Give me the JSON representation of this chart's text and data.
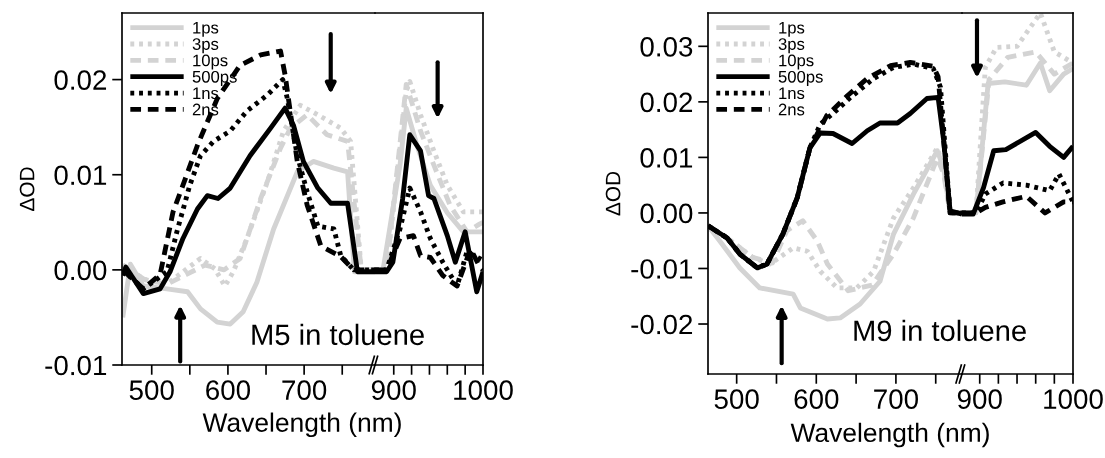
{
  "chart_data": [
    {
      "type": "line",
      "xlabel": "Wavelength (nm)",
      "ylabel": "ΔOD",
      "annotations": [
        "M5 in toluene"
      ],
      "legend": "top left",
      "xlim": [
        461,
        793
      ],
      "xticks": [
        500,
        {
          "value": 550,
          "label": null
        },
        600,
        {
          "value": 650,
          "label": null
        },
        700,
        {
          "value": 750,
          "label": null
        }
      ],
      "ylim": [
        -0.01,
        0.027
      ],
      "yticks": [
        -0.01,
        {
          "value": 0,
          "label": "0.00"
        },
        0.01,
        0.02
      ],
      "series": [
        {
          "name": "1ps",
          "color": "#d3d3d3",
          "line_style": "solid",
          "x": [
            462,
            472,
            489,
            520,
            547,
            564,
            586,
            603,
            620,
            638,
            660,
            691,
            712,
            739,
            757,
            766,
            793
          ],
          "values": [
            -0.005,
            0.0006,
            -0.0017,
            -0.002,
            -0.0023,
            -0.0041,
            -0.0055,
            -0.0057,
            -0.0044,
            -0.0013,
            0.0043,
            0.0103,
            0.0114,
            0.0107,
            0.0103,
            -0.0002,
            -0.0002
          ]
        },
        {
          "name": "3ps",
          "color": "#d3d3d3",
          "line_style": "dotted",
          "x": [
            462,
            490,
            520,
            541,
            564,
            583,
            596,
            607,
            625,
            652,
            673,
            695,
            718,
            748,
            761,
            775,
            793
          ],
          "values": [
            0.0005,
            -0.001,
            -0.0015,
            -0.0002,
            0.0012,
            0.0001,
            -0.0017,
            -0.0002,
            0.0033,
            0.0093,
            0.0146,
            0.0173,
            0.0163,
            0.0149,
            0.0135,
            0.0,
            0.0
          ]
        },
        {
          "name": "10ps",
          "color": "#d3d3d3",
          "line_style": "dashed",
          "x": [
            462,
            490,
            520,
            545,
            570,
            595,
            616,
            643,
            669,
            682,
            704,
            730,
            757,
            775,
            793
          ],
          "values": [
            0.0005,
            -0.001,
            -0.0015,
            -0.0005,
            0.0005,
            0.0,
            0.0012,
            0.0075,
            0.0128,
            0.0149,
            0.0163,
            0.0142,
            0.0135,
            0.0,
            0.0
          ]
        },
        {
          "name": "500ps",
          "color": "#000000",
          "line_style": "solid",
          "x": [
            462,
            466,
            489,
            511,
            524,
            541,
            560,
            573,
            587,
            603,
            629,
            656,
            675,
            686,
            699,
            718,
            735,
            757,
            770,
            793
          ],
          "values": [
            -0.0006,
            0.0003,
            -0.0025,
            -0.002,
            -0.0002,
            0.0033,
            0.0064,
            0.0078,
            0.0075,
            0.0086,
            0.012,
            0.0149,
            0.017,
            0.0152,
            0.0114,
            0.0086,
            0.007,
            0.007,
            -0.0002,
            -0.0002
          ]
        },
        {
          "name": "1ns",
          "color": "#000000",
          "line_style": "dotted",
          "x": [
            462,
            489,
            520,
            533,
            550,
            564,
            581,
            603,
            625,
            652,
            672,
            678,
            691,
            704,
            718,
            739,
            748,
            765,
            793
          ],
          "values": [
            0.0,
            -0.002,
            -0.0002,
            0.004,
            0.0089,
            0.012,
            0.0135,
            0.0146,
            0.0167,
            0.0184,
            0.02,
            0.018,
            0.012,
            0.0082,
            0.0046,
            0.0043,
            0.0015,
            0.0,
            0.0
          ]
        },
        {
          "name": "2ns",
          "color": "#000000",
          "line_style": "dashed",
          "x": [
            462,
            489,
            511,
            528,
            541,
            560,
            586,
            616,
            643,
            669,
            675,
            691,
            704,
            722,
            748,
            765,
            793
          ],
          "values": [
            0.0,
            -0.002,
            -0.0005,
            0.0061,
            0.0089,
            0.0131,
            0.018,
            0.0215,
            0.0226,
            0.023,
            0.0205,
            0.0114,
            0.0068,
            0.0025,
            0.0014,
            0.0,
            0.0
          ]
        }
      ]
    },
    {
      "type": "line",
      "tick_labels": "x",
      "xlim": [
        879,
        1000
      ],
      "xticks": [
        900,
        {
          "value": 920,
          "label": null
        },
        {
          "value": 940,
          "label": null
        },
        {
          "value": 960,
          "label": null
        },
        {
          "value": 980,
          "label": null
        },
        1000
      ],
      "ylim": [
        -0.01,
        0.027
      ],
      "series": [
        {
          "color": "#d3d3d3",
          "line_style": "solid",
          "x": [
            879,
            888,
            907,
            914,
            926,
            941,
            960,
            978,
            996,
            1000
          ],
          "values": [
            0,
            0,
            0.011,
            0.017,
            0.0131,
            0.0089,
            0.006,
            0.004,
            0.004,
            0.004
          ]
        },
        {
          "color": "#d3d3d3",
          "line_style": "dotted",
          "x": [
            879,
            892,
            914,
            918,
            930,
            945,
            960,
            978,
            996,
            1000
          ],
          "values": [
            0,
            0,
            0.0188,
            0.0198,
            0.0163,
            0.0125,
            0.0089,
            0.0061,
            0.0061,
            0.0061
          ]
        },
        {
          "color": "#d3d3d3",
          "line_style": "dashed",
          "x": [
            879,
            892,
            914,
            930,
            945,
            963,
            982,
            996,
            1000
          ],
          "values": [
            0,
            0,
            0.0195,
            0.0146,
            0.011,
            0.0068,
            0.004,
            0.0048,
            0.005
          ]
        },
        {
          "color": "#000000",
          "line_style": "solid",
          "x": [
            879,
            892,
            899,
            910,
            918,
            930,
            939,
            945,
            960,
            969,
            980,
            993,
            1000
          ],
          "values": [
            -0.0002,
            -0.0002,
            0.0008,
            0.0075,
            0.0142,
            0.0125,
            0.0078,
            0.0075,
            0.0036,
            0.0008,
            0.004,
            -0.0023,
            -0.0002
          ]
        },
        {
          "color": "#000000",
          "line_style": "dotted",
          "x": [
            879,
            892,
            907,
            918,
            930,
            941,
            955,
            971,
            982,
            996,
            1000
          ],
          "values": [
            0,
            0,
            0.0043,
            0.0086,
            0.0061,
            0.0033,
            0.0008,
            -0.0017,
            0.0019,
            0.0012,
            0.001
          ]
        },
        {
          "color": "#000000",
          "line_style": "dashed",
          "x": [
            879,
            892,
            907,
            922,
            930,
            941,
            955,
            971,
            986,
            996,
            1000
          ],
          "values": [
            0,
            0,
            0.0033,
            0.0036,
            0.0015,
            0.0013,
            -0.0006,
            -0.0017,
            0.0022,
            0.0004,
            0.0
          ]
        }
      ]
    },
    {
      "type": "line",
      "xlabel": "Wavelength (nm)",
      "ylabel": "ΔOD",
      "annotations": [
        "M9 in toluene"
      ],
      "legend": "top left",
      "xlim": [
        464,
        783
      ],
      "xticks": [
        500,
        {
          "value": 550,
          "label": null
        },
        600,
        {
          "value": 650,
          "label": null
        },
        700,
        {
          "value": 750,
          "label": null
        }
      ],
      "ylim": [
        -0.029,
        0.036
      ],
      "yticks": [
        -0.02,
        -0.01,
        {
          "value": 0,
          "label": "0.00"
        },
        0.01,
        0.02,
        0.03
      ],
      "series": [
        {
          "name": "1ps",
          "color": "#d3d3d3",
          "line_style": "solid",
          "x": [
            464,
            479,
            504,
            529,
            571,
            580,
            614,
            630,
            655,
            680,
            697,
            722,
            752,
            760,
            768,
            783
          ],
          "values": [
            -0.0023,
            -0.0051,
            -0.0099,
            -0.0135,
            -0.0146,
            -0.0171,
            -0.0191,
            -0.0189,
            -0.0164,
            -0.0123,
            -0.0038,
            0.0034,
            0.0112,
            0.008,
            0.0,
            0.0
          ]
        },
        {
          "name": "3ps",
          "color": "#d3d3d3",
          "line_style": "dotted",
          "x": [
            464,
            488,
            520,
            542,
            571,
            589,
            605,
            626,
            651,
            672,
            697,
            722,
            752,
            760,
            768,
            783
          ],
          "values": [
            -0.0023,
            -0.0045,
            -0.008,
            -0.0092,
            -0.0063,
            -0.0069,
            -0.0105,
            -0.0135,
            -0.0135,
            -0.0105,
            -0.0009,
            0.0045,
            0.0117,
            0.008,
            0.0,
            0.0
          ]
        },
        {
          "name": "10ps",
          "color": "#d3d3d3",
          "line_style": "dashed",
          "x": [
            464,
            488,
            520,
            545,
            563,
            583,
            601,
            614,
            640,
            670,
            697,
            722,
            752,
            760,
            768,
            783
          ],
          "values": [
            -0.0023,
            -0.0045,
            -0.008,
            -0.009,
            -0.0032,
            -0.0014,
            -0.005,
            -0.0092,
            -0.014,
            -0.013,
            -0.0074,
            -0.0009,
            0.0099,
            0.007,
            0.0,
            0.0
          ]
        },
        {
          "name": "500ps",
          "color": "#000000",
          "line_style": "solid",
          "x": [
            464,
            488,
            504,
            526,
            538,
            558,
            576,
            592,
            605,
            621,
            645,
            664,
            680,
            702,
            718,
            739,
            753,
            760,
            768,
            783
          ],
          "values": [
            -0.0023,
            -0.0045,
            -0.0074,
            -0.0099,
            -0.0092,
            -0.0038,
            0.0027,
            0.0117,
            0.0144,
            0.0143,
            0.0125,
            0.0148,
            0.0162,
            0.0162,
            0.0179,
            0.0206,
            0.0208,
            0.013,
            0.0004,
            -0.0002
          ]
        },
        {
          "name": "1ns",
          "color": "#000000",
          "line_style": "dotted",
          "x": [
            464,
            488,
            504,
            526,
            538,
            558,
            576,
            592,
            605,
            621,
            643,
            672,
            697,
            722,
            747,
            756,
            768,
            783
          ],
          "values": [
            -0.0023,
            -0.0045,
            -0.0074,
            -0.0099,
            -0.0092,
            -0.0038,
            0.0027,
            0.0117,
            0.016,
            0.0179,
            0.0208,
            0.0242,
            0.0262,
            0.0268,
            0.026,
            0.0226,
            0.0,
            0.0
          ]
        },
        {
          "name": "2ns",
          "color": "#000000",
          "line_style": "dashed",
          "x": [
            464,
            488,
            504,
            526,
            538,
            558,
            576,
            592,
            613,
            639,
            664,
            693,
            718,
            747,
            753,
            768,
            783
          ],
          "values": [
            -0.0023,
            -0.0045,
            -0.0074,
            -0.0099,
            -0.0092,
            -0.0038,
            0.0027,
            0.0117,
            0.0175,
            0.0211,
            0.0242,
            0.0265,
            0.0271,
            0.0264,
            0.0245,
            0.0,
            0.0
          ]
        }
      ]
    },
    {
      "type": "line",
      "tick_labels": "x",
      "xlim": [
        881,
        1000
      ],
      "xticks": [
        900,
        {
          "value": 920,
          "label": null
        },
        {
          "value": 940,
          "label": null
        },
        {
          "value": 960,
          "label": null
        },
        {
          "value": 980,
          "label": null
        },
        1000
      ],
      "ylim": [
        -0.029,
        0.036
      ],
      "series": [
        {
          "color": "#d3d3d3",
          "line_style": "solid",
          "x": [
            881,
            896,
            909,
            927,
            950,
            965,
            975,
            990,
            1000
          ],
          "values": [
            0,
            0,
            0.0233,
            0.0236,
            0.023,
            0.027,
            0.022,
            0.025,
            0.026
          ]
        },
        {
          "color": "#d3d3d3",
          "line_style": "dotted",
          "x": [
            881,
            896,
            906,
            918,
            940,
            965,
            980,
            1000
          ],
          "values": [
            0,
            0,
            0.0262,
            0.0298,
            0.03,
            0.036,
            0.029,
            0.027
          ]
        },
        {
          "color": "#d3d3d3",
          "line_style": "dashed",
          "x": [
            881,
            896,
            910,
            930,
            960,
            980,
            1000
          ],
          "values": [
            0,
            0,
            0.024,
            0.028,
            0.029,
            0.025,
            0.027
          ]
        },
        {
          "color": "#000000",
          "line_style": "solid",
          "x": [
            881,
            893,
            904,
            915,
            928,
            960,
            975,
            990,
            1000
          ],
          "values": [
            -0.0002,
            -0.0002,
            0.0045,
            0.0112,
            0.0114,
            0.0145,
            0.012,
            0.01,
            0.012
          ]
        },
        {
          "color": "#000000",
          "line_style": "dotted",
          "x": [
            881,
            896,
            906,
            925,
            950,
            975,
            985,
            1000
          ],
          "values": [
            0,
            0,
            0.0034,
            0.0054,
            0.005,
            0.004,
            0.007,
            0.002
          ]
        },
        {
          "color": "#000000",
          "line_style": "dashed",
          "x": [
            881,
            896,
            906,
            925,
            950,
            970,
            990,
            1000
          ],
          "values": [
            0,
            0,
            0.001,
            0.002,
            0.003,
            0.0,
            0.002,
            0.002
          ]
        }
      ]
    }
  ]
}
